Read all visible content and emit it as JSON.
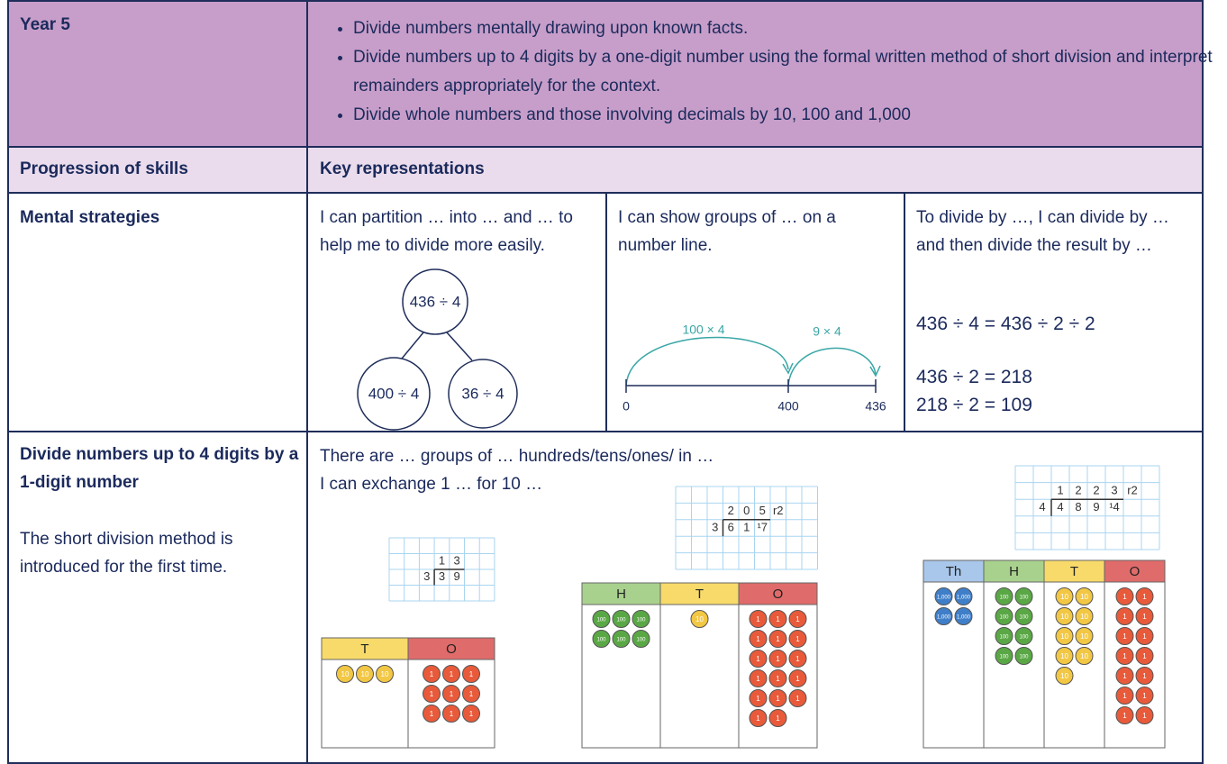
{
  "header": {
    "year": "Year 5",
    "objectives": [
      "Divide numbers mentally drawing upon known facts.",
      "Divide numbers up to 4 digits by a one-digit number using the formal written method of short division and interpret remainders appropriately for the context.",
      "Divide whole numbers and those involving decimals by 10, 100 and 1,000"
    ]
  },
  "subheader": {
    "left": "Progression of skills",
    "right": "Key representations"
  },
  "rows": [
    {
      "skill": "Mental strategies",
      "cells": [
        {
          "text": "I can partition … into … and … to help me to divide more easily.",
          "diagram": {
            "top": "436 ÷ 4",
            "left": "400 ÷ 4",
            "right": "36 ÷ 4"
          }
        },
        {
          "text": "I can show groups of …  on a number line.",
          "diagram": {
            "jumps": [
              "100 × 4",
              "9 × 4"
            ],
            "ticks": [
              "0",
              "400",
              "436"
            ]
          }
        },
        {
          "text": "To divide by …, I can divide by … and then divide the result by …",
          "lines": [
            "436 ÷ 4 = 436 ÷ 2 ÷ 2",
            "436 ÷ 2 = 218",
            "218 ÷ 2 = 109"
          ]
        }
      ]
    },
    {
      "skill": "Divide numbers up to 4 digits by a 1-digit number",
      "note": "The short division method is introduced for the first time.",
      "text": [
        "There are … groups of … hundreds/tens/ones/ in …",
        "I can exchange 1 … for 10 …"
      ],
      "examples": [
        {
          "quotient": [
            "1",
            "3"
          ],
          "divisor": "3",
          "dividend": [
            "3",
            "9"
          ],
          "columns": [
            {
              "heading": "T",
              "counter": "10"
            },
            {
              "heading": "O",
              "counter": "1"
            }
          ]
        },
        {
          "quotient": [
            "2",
            "0",
            "5",
            "r2"
          ],
          "divisor": "3",
          "dividend": [
            "6",
            "1",
            "¹7"
          ],
          "columns": [
            {
              "heading": "H",
              "counter": "100"
            },
            {
              "heading": "T",
              "counter": "10"
            },
            {
              "heading": "O",
              "counter": "1"
            }
          ]
        },
        {
          "quotient": [
            "1",
            "2",
            "2",
            "3",
            "r2"
          ],
          "divisor": "4",
          "dividend": [
            "4",
            "8",
            "9",
            "¹4"
          ],
          "columns": [
            {
              "heading": "Th",
              "counter": "1,000"
            },
            {
              "heading": "H",
              "counter": "100"
            },
            {
              "heading": "T",
              "counter": "10"
            },
            {
              "heading": "O",
              "counter": "1"
            }
          ]
        }
      ]
    }
  ]
}
